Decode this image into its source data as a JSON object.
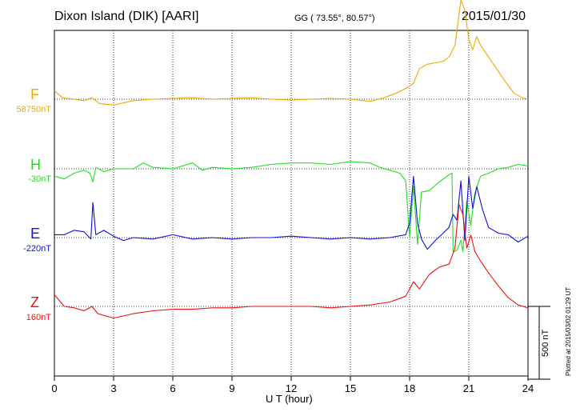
{
  "header": {
    "title": "Dixon Island (DIK)  [AARI]",
    "coords": "GG ( 73.55°,  80.57°)",
    "date": "2015/01/30",
    "plotted": "Plotted at 2015/03/02 01:29 UT"
  },
  "chart_data": {
    "type": "line",
    "xlabel": "U T (hour)",
    "xlim": [
      0,
      24
    ],
    "xticks": [
      0,
      3,
      6,
      9,
      12,
      15,
      18,
      21,
      24
    ],
    "xtick_labels": [
      "0",
      "3",
      "6",
      "9",
      "12",
      "15",
      "18",
      "21",
      "24"
    ],
    "grid": true,
    "scale_bar_label": "500 nT",
    "series": [
      {
        "name": "F",
        "baseline_label": "58750nT",
        "color": "#f0a800",
        "baseline_value": 58750,
        "points": [
          [
            0,
            58810
          ],
          [
            0.4,
            58760
          ],
          [
            1,
            58750
          ],
          [
            1.5,
            58740
          ],
          [
            1.9,
            58760
          ],
          [
            2.3,
            58720
          ],
          [
            3,
            58710
          ],
          [
            4,
            58740
          ],
          [
            5,
            58750
          ],
          [
            6,
            58755
          ],
          [
            7,
            58760
          ],
          [
            8,
            58750
          ],
          [
            9,
            58755
          ],
          [
            10,
            58760
          ],
          [
            11,
            58750
          ],
          [
            12,
            58745
          ],
          [
            13,
            58750
          ],
          [
            14,
            58755
          ],
          [
            15,
            58750
          ],
          [
            16,
            58735
          ],
          [
            16.7,
            58760
          ],
          [
            17.3,
            58790
          ],
          [
            17.9,
            58830
          ],
          [
            18.2,
            58860
          ],
          [
            18.5,
            58960
          ],
          [
            18.9,
            58990
          ],
          [
            19.3,
            59000
          ],
          [
            19.7,
            59010
          ],
          [
            20.0,
            59040
          ],
          [
            20.3,
            59120
          ],
          [
            20.6,
            59430
          ],
          [
            20.8,
            59360
          ],
          [
            21.0,
            59160
          ],
          [
            21.2,
            59090
          ],
          [
            21.4,
            59180
          ],
          [
            21.6,
            59120
          ],
          [
            21.9,
            59060
          ],
          [
            22.3,
            58980
          ],
          [
            22.8,
            58880
          ],
          [
            23.3,
            58790
          ],
          [
            23.7,
            58760
          ],
          [
            24,
            58750
          ]
        ]
      },
      {
        "name": "H",
        "baseline_label": "-30nT",
        "color": "#22dd22",
        "baseline_value": -30,
        "points": [
          [
            0,
            -80
          ],
          [
            0.5,
            -100
          ],
          [
            1,
            -60
          ],
          [
            1.5,
            -40
          ],
          [
            1.8,
            -60
          ],
          [
            1.95,
            -120
          ],
          [
            2.1,
            -20
          ],
          [
            2.5,
            -50
          ],
          [
            3,
            -30
          ],
          [
            4,
            -30
          ],
          [
            4.5,
            10
          ],
          [
            5,
            -20
          ],
          [
            6,
            -30
          ],
          [
            6.5,
            -10
          ],
          [
            7,
            10
          ],
          [
            7.5,
            -40
          ],
          [
            8,
            -20
          ],
          [
            9,
            -30
          ],
          [
            10,
            -20
          ],
          [
            11,
            0
          ],
          [
            12,
            10
          ],
          [
            13,
            10
          ],
          [
            14,
            0
          ],
          [
            15,
            20
          ],
          [
            16,
            10
          ],
          [
            16.5,
            -20
          ],
          [
            17,
            -40
          ],
          [
            17.5,
            -60
          ],
          [
            17.8,
            -110
          ],
          [
            18.0,
            -500
          ],
          [
            18.2,
            -150
          ],
          [
            18.4,
            -550
          ],
          [
            18.6,
            -190
          ],
          [
            19.0,
            -180
          ],
          [
            19.5,
            -120
          ],
          [
            20.0,
            -70
          ],
          [
            20.15,
            -60
          ],
          [
            20.2,
            -600
          ],
          [
            20.4,
            -590
          ],
          [
            20.6,
            -520
          ],
          [
            20.7,
            -600
          ],
          [
            20.9,
            -250
          ],
          [
            21.1,
            -420
          ],
          [
            21.3,
            -200
          ],
          [
            21.6,
            -80
          ],
          [
            22,
            -60
          ],
          [
            22.5,
            -30
          ],
          [
            23,
            -20
          ],
          [
            23.5,
            0
          ],
          [
            24,
            -10
          ]
        ]
      },
      {
        "name": "E",
        "baseline_label": "-220nT",
        "color": "#1010dd",
        "baseline_value": -220,
        "points": [
          [
            0,
            -200
          ],
          [
            0.5,
            -200
          ],
          [
            1,
            -170
          ],
          [
            1.5,
            -180
          ],
          [
            1.85,
            -230
          ],
          [
            1.95,
            20
          ],
          [
            2.1,
            -200
          ],
          [
            2.5,
            -170
          ],
          [
            3,
            -210
          ],
          [
            3.5,
            -240
          ],
          [
            4,
            -220
          ],
          [
            5,
            -230
          ],
          [
            6,
            -200
          ],
          [
            7,
            -230
          ],
          [
            8,
            -220
          ],
          [
            9,
            -230
          ],
          [
            10,
            -220
          ],
          [
            11,
            -220
          ],
          [
            12,
            -210
          ],
          [
            13,
            -220
          ],
          [
            14,
            -230
          ],
          [
            15,
            -220
          ],
          [
            16,
            -230
          ],
          [
            17,
            -220
          ],
          [
            17.8,
            -200
          ],
          [
            18.0,
            -120
          ],
          [
            18.2,
            200
          ],
          [
            18.4,
            -120
          ],
          [
            18.6,
            -230
          ],
          [
            18.9,
            -300
          ],
          [
            19.3,
            -240
          ],
          [
            19.7,
            -190
          ],
          [
            20.0,
            -150
          ],
          [
            20.2,
            -60
          ],
          [
            20.4,
            -100
          ],
          [
            20.6,
            170
          ],
          [
            20.8,
            -240
          ],
          [
            21.0,
            200
          ],
          [
            21.2,
            -20
          ],
          [
            21.4,
            130
          ],
          [
            21.7,
            -30
          ],
          [
            22,
            -150
          ],
          [
            22.5,
            -190
          ],
          [
            23,
            -200
          ],
          [
            23.5,
            -250
          ],
          [
            24,
            -210
          ]
        ]
      },
      {
        "name": "Z",
        "baseline_label": "160nT",
        "color": "#ee1111",
        "baseline_value": 160,
        "points": [
          [
            0,
            240
          ],
          [
            0.5,
            160
          ],
          [
            1,
            150
          ],
          [
            1.5,
            130
          ],
          [
            1.9,
            160
          ],
          [
            2.2,
            110
          ],
          [
            3,
            80
          ],
          [
            4,
            110
          ],
          [
            5,
            130
          ],
          [
            6,
            140
          ],
          [
            7,
            140
          ],
          [
            8,
            150
          ],
          [
            9,
            150
          ],
          [
            10,
            160
          ],
          [
            11,
            160
          ],
          [
            12,
            160
          ],
          [
            13,
            160
          ],
          [
            14,
            150
          ],
          [
            15,
            160
          ],
          [
            16,
            170
          ],
          [
            17,
            190
          ],
          [
            17.8,
            230
          ],
          [
            18.2,
            330
          ],
          [
            18.5,
            280
          ],
          [
            19,
            380
          ],
          [
            19.5,
            430
          ],
          [
            20.0,
            450
          ],
          [
            20.3,
            560
          ],
          [
            20.5,
            860
          ],
          [
            20.7,
            790
          ],
          [
            20.9,
            560
          ],
          [
            21.1,
            650
          ],
          [
            21.3,
            540
          ],
          [
            21.6,
            470
          ],
          [
            22,
            390
          ],
          [
            22.5,
            300
          ],
          [
            23,
            220
          ],
          [
            23.5,
            170
          ],
          [
            24,
            150
          ]
        ]
      }
    ]
  }
}
